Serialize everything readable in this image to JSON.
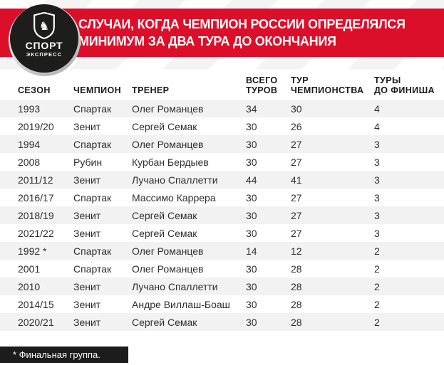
{
  "brand": {
    "logo_text_main": "СПОРТ",
    "logo_text_sub": "ЭКСПРЕСС",
    "logo_icon": "shield-knight-icon"
  },
  "banner": {
    "title_line1": "СЛУЧАИ, КОГДА ЧЕМПИОН РОССИИ ОПРЕДЕЛЯЛСЯ",
    "title_line2": "МИНИМУМ ЗА ДВА ТУРА ДО ОКОНЧАНИЯ"
  },
  "chart_data": {
    "type": "table",
    "title": "СЛУЧАИ, КОГДА ЧЕМПИОН РОССИИ ОПРЕДЕЛЯЛСЯ МИНИМУМ ЗА ДВА ТУРА ДО ОКОНЧАНИЯ",
    "columns": [
      {
        "key": "season",
        "lines": [
          "СЕЗОН"
        ]
      },
      {
        "key": "champion",
        "lines": [
          "ЧЕМПИОН"
        ]
      },
      {
        "key": "coach",
        "lines": [
          "ТРЕНЕР"
        ]
      },
      {
        "key": "total-rounds",
        "lines": [
          "ВСЕГО",
          "ТУРОВ"
        ]
      },
      {
        "key": "championship-round",
        "lines": [
          "ТУР",
          "ЧЕМПИОНСТВА"
        ]
      },
      {
        "key": "rounds-to-finish",
        "lines": [
          "ТУРЫ",
          "ДО ФИНИША"
        ]
      }
    ],
    "rows": [
      [
        "1993",
        "Спартак",
        "Олег Романцев",
        "34",
        "30",
        "4"
      ],
      [
        "2019/20",
        "Зенит",
        "Сергей Семак",
        "30",
        "26",
        "4"
      ],
      [
        "1994",
        "Спартак",
        "Олег Романцев",
        "30",
        "27",
        "3"
      ],
      [
        "2008",
        "Рубин",
        "Курбан Бердыев",
        "30",
        "27",
        "3"
      ],
      [
        "2011/12",
        "Зенит",
        "Лучано Спаллетти",
        "44",
        "41",
        "3"
      ],
      [
        "2016/17",
        "Спартак",
        "Массимо Каррера",
        "30",
        "27",
        "3"
      ],
      [
        "2018/19",
        "Зенит",
        "Сергей Семак",
        "30",
        "27",
        "3"
      ],
      [
        "2021/22",
        "Зенит",
        "Сергей Семак",
        "30",
        "27",
        "3"
      ],
      [
        "1992 *",
        "Спартак",
        "Олег Романцев",
        "14",
        "12",
        "2"
      ],
      [
        "2001",
        "Спартак",
        "Олег Романцев",
        "30",
        "28",
        "2"
      ],
      [
        "2010",
        "Зенит",
        "Лучано Спаллетти",
        "30",
        "28",
        "2"
      ],
      [
        "2014/15",
        "Зенит",
        "Андре Виллаш-Боаш",
        "30",
        "28",
        "2"
      ],
      [
        "2020/21",
        "Зенит",
        "Сергей Семак",
        "30",
        "28",
        "2"
      ]
    ],
    "footnote": "* Финальная группа.",
    "layout": {
      "grid": false,
      "legend": "none",
      "row_striping": "odd-rows-gray"
    }
  },
  "colors": {
    "banner_bg": "#dc0e2a",
    "banner_fg": "#ffffff",
    "logo_bg": "#1d1d1b",
    "header_fg": "#1a1a1a",
    "row_fg": "#2e2e2e",
    "row_alt": "#f2f2f2",
    "note_bg": "#1c1c1c",
    "note_fg": "#ffffff"
  }
}
